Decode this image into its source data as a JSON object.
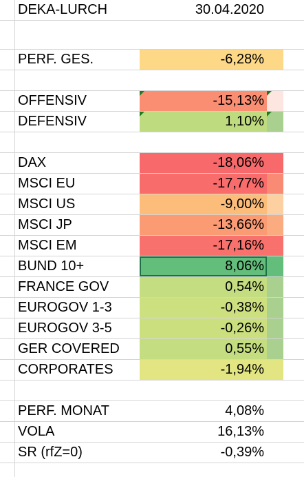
{
  "sheet": {
    "header": {
      "label": "DEKA-LURCH",
      "value": "30.04.2020"
    },
    "rows": [
      {
        "label": "",
        "value": "",
        "bg": "",
        "side": ""
      },
      {
        "label": "PERF. GES.",
        "value": "-6,28%",
        "bg": "#fdd887",
        "side": "#fdd887"
      },
      {
        "label": "",
        "value": "",
        "bg": "",
        "side": ""
      },
      {
        "label": "OFFENSIV",
        "value": "-15,13%",
        "bg": "#fa8e73",
        "side": "#fde6e0",
        "flag": true
      },
      {
        "label": "DEFENSIV",
        "value": "1,10%",
        "bg": "#bfdb7f",
        "side": "#a9d08e",
        "flag": true
      },
      {
        "label": "",
        "value": "",
        "bg": "",
        "side": ""
      },
      {
        "label": "DAX",
        "value": "-18,06%",
        "bg": "#f8696b",
        "side": "#f8696b"
      },
      {
        "label": "MSCI EU",
        "value": "-17,77%",
        "bg": "#f86c6b",
        "side": "#f98a73"
      },
      {
        "label": "MSCI US",
        "value": "-9,00%",
        "bg": "#fcbd7b",
        "side": "#fdd0a2"
      },
      {
        "label": "MSCI JP",
        "value": "-13,66%",
        "bg": "#fa9b74",
        "side": "#fbab80"
      },
      {
        "label": "MSCI EM",
        "value": "-17,16%",
        "bg": "#f8716c",
        "side": "#f8716c"
      },
      {
        "label": "BUND 10+",
        "value": "8,06%",
        "bg": "#63be7b",
        "side": "#63be7b",
        "selected": true
      },
      {
        "label": "FRANCE GOV",
        "value": "0,54%",
        "bg": "#c4dd80",
        "side": "#a9d08e"
      },
      {
        "label": "EUROGOV 1-3",
        "value": "-0,38%",
        "bg": "#cde07f",
        "side": "#a9d08e"
      },
      {
        "label": "EUROGOV 3-5",
        "value": "-0,26%",
        "bg": "#cbdf7f",
        "side": "#a9d08e"
      },
      {
        "label": "GER COVERED",
        "value": "0,55%",
        "bg": "#c4dd80",
        "side": "#a9d08e"
      },
      {
        "label": "CORPORATES",
        "value": "-1,94%",
        "bg": "#e2e582",
        "side": "#e2e582"
      },
      {
        "label": "",
        "value": "",
        "bg": "",
        "side": ""
      },
      {
        "label": "PERF. MONAT",
        "value": "4,08%",
        "bg": "",
        "side": ""
      },
      {
        "label": "VOLA",
        "value": "16,13%",
        "bg": "",
        "side": ""
      },
      {
        "label": "SR (rfZ=0)",
        "value": "-0,39%",
        "bg": "",
        "side": ""
      }
    ]
  }
}
